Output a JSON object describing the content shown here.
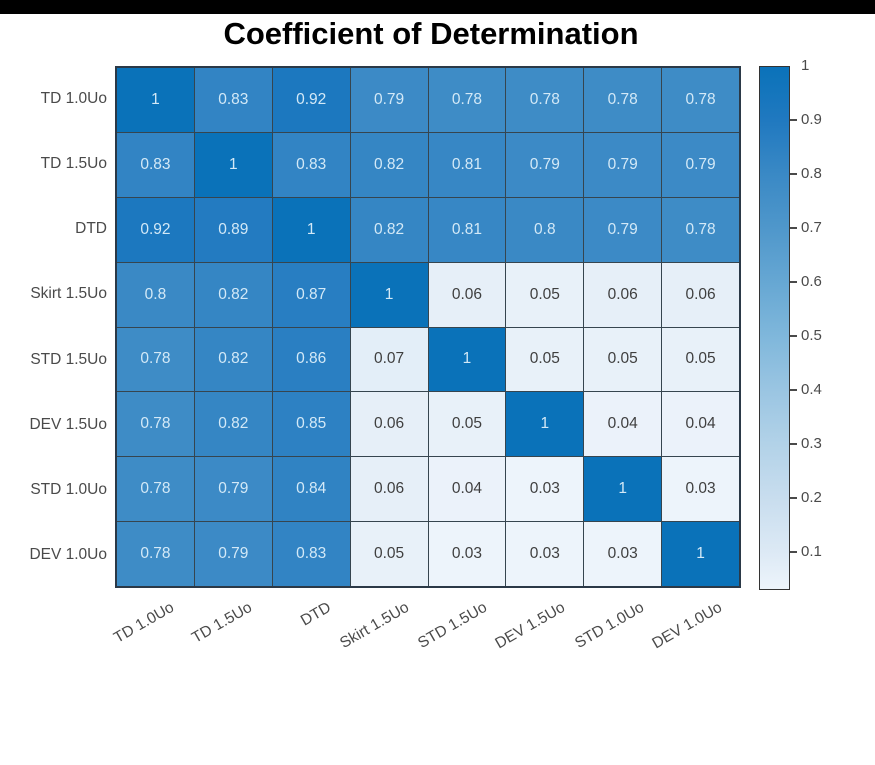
{
  "frame": {
    "top_bar_color": "#000000",
    "background": "#ffffff"
  },
  "chart_data": {
    "type": "heatmap",
    "title": "Coefficient of Determination",
    "rows": [
      "TD 1.0Uo",
      "TD 1.5Uo",
      "DTD",
      "Skirt 1.5Uo",
      "STD 1.5Uo",
      "DEV 1.5Uo",
      "STD 1.0Uo",
      "DEV 1.0Uo"
    ],
    "columns": [
      "TD 1.0Uo",
      "TD 1.5Uo",
      "DTD",
      "Skirt 1.5Uo",
      "STD 1.5Uo",
      "DEV 1.5Uo",
      "STD 1.0Uo",
      "DEV 1.0Uo"
    ],
    "matrix": [
      [
        1,
        0.83,
        0.92,
        0.79,
        0.78,
        0.78,
        0.78,
        0.78
      ],
      [
        0.83,
        1,
        0.83,
        0.82,
        0.81,
        0.79,
        0.79,
        0.79
      ],
      [
        0.92,
        0.89,
        1,
        0.82,
        0.81,
        0.8,
        0.79,
        0.78
      ],
      [
        0.8,
        0.82,
        0.87,
        1,
        0.06,
        0.05,
        0.06,
        0.06
      ],
      [
        0.78,
        0.82,
        0.86,
        0.07,
        1,
        0.05,
        0.05,
        0.05
      ],
      [
        0.78,
        0.82,
        0.85,
        0.06,
        0.05,
        1,
        0.04,
        0.04
      ],
      [
        0.78,
        0.79,
        0.84,
        0.06,
        0.04,
        0.03,
        1,
        0.03
      ],
      [
        0.78,
        0.79,
        0.83,
        0.05,
        0.03,
        0.03,
        0.03,
        1
      ]
    ],
    "colorbar": {
      "position": "right",
      "min": 0.03,
      "max": 1,
      "tick_values": [
        1,
        0.9,
        0.8,
        0.7,
        0.6,
        0.5,
        0.4,
        0.3,
        0.2,
        0.1
      ],
      "tick_labels": [
        "1",
        "0.9",
        "0.8",
        "0.7",
        "0.6",
        "0.5",
        "0.4",
        "0.3",
        "0.2",
        "0.1"
      ]
    },
    "colormap_stops": [
      [
        0.03,
        "#edf4fb"
      ],
      [
        0.1,
        "#dce9f5"
      ],
      [
        0.2,
        "#c8ddee"
      ],
      [
        0.3,
        "#b2d2e8"
      ],
      [
        0.4,
        "#9ac5e2"
      ],
      [
        0.5,
        "#7fb7db"
      ],
      [
        0.6,
        "#66a7d3"
      ],
      [
        0.7,
        "#4f97cb"
      ],
      [
        0.8,
        "#3a89c5"
      ],
      [
        0.9,
        "#2079c0"
      ],
      [
        1.0,
        "#0a72b9"
      ]
    ],
    "colors": {
      "max_cell": "#0a72b9",
      "grid_line": "#36454f",
      "cell_text_on_dark": "#d3e9f7",
      "cell_text_on_light": "#3f3f3f",
      "axis_label": "#4a4a4a",
      "title": "#000000"
    },
    "value_text_threshold": 0.5,
    "grid": "on",
    "xlabel": "",
    "ylabel": ""
  }
}
